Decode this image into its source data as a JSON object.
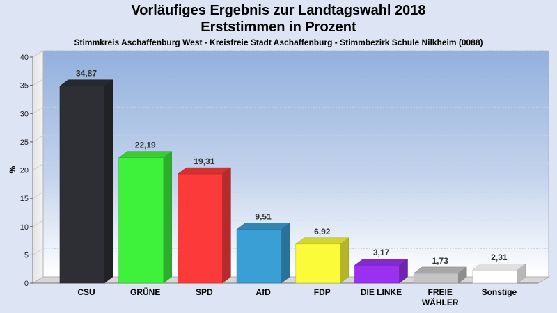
{
  "header": {
    "title_line1": "Vorläufiges Ergebnis zur Landtagswahl 2018",
    "title_line2": "Erststimmen in Prozent",
    "subtitle": "Stimmkreis Aschaffenburg West - Kreisfreie Stadt Aschaffenburg - Stimmbezirk Schule Nilkheim (0088)"
  },
  "chart_data": {
    "type": "bar",
    "title": "Vorläufiges Ergebnis zur Landtagswahl 2018 Erststimmen in Prozent",
    "subtitle": "Stimmkreis Aschaffenburg West - Kreisfreie Stadt Aschaffenburg - Stimmbezirk Schule Nilkheim (0088)",
    "xlabel": "",
    "ylabel": "%",
    "ylim": [
      0,
      40
    ],
    "yticks": [
      0,
      5,
      10,
      15,
      20,
      25,
      30,
      35,
      40
    ],
    "grid": true,
    "categories": [
      [
        "CSU"
      ],
      [
        "GRÜNE"
      ],
      [
        "SPD"
      ],
      [
        "AfD"
      ],
      [
        "FDP"
      ],
      [
        "DIE LINKE"
      ],
      [
        "FREIE",
        "WÄHLER"
      ],
      [
        "Sonstige"
      ]
    ],
    "values": [
      34.87,
      22.19,
      19.31,
      9.51,
      6.92,
      3.17,
      1.73,
      2.31
    ],
    "value_labels": [
      "34,87",
      "22,19",
      "19,31",
      "9,51",
      "6,92",
      "3,17",
      "1,73",
      "2,31"
    ],
    "colors": [
      "#2e2f35",
      "#3ef23c",
      "#fc3a3a",
      "#3a9fd4",
      "#fbfb3a",
      "#9b30f0",
      "#c4c4c4",
      "#ffffff"
    ]
  }
}
